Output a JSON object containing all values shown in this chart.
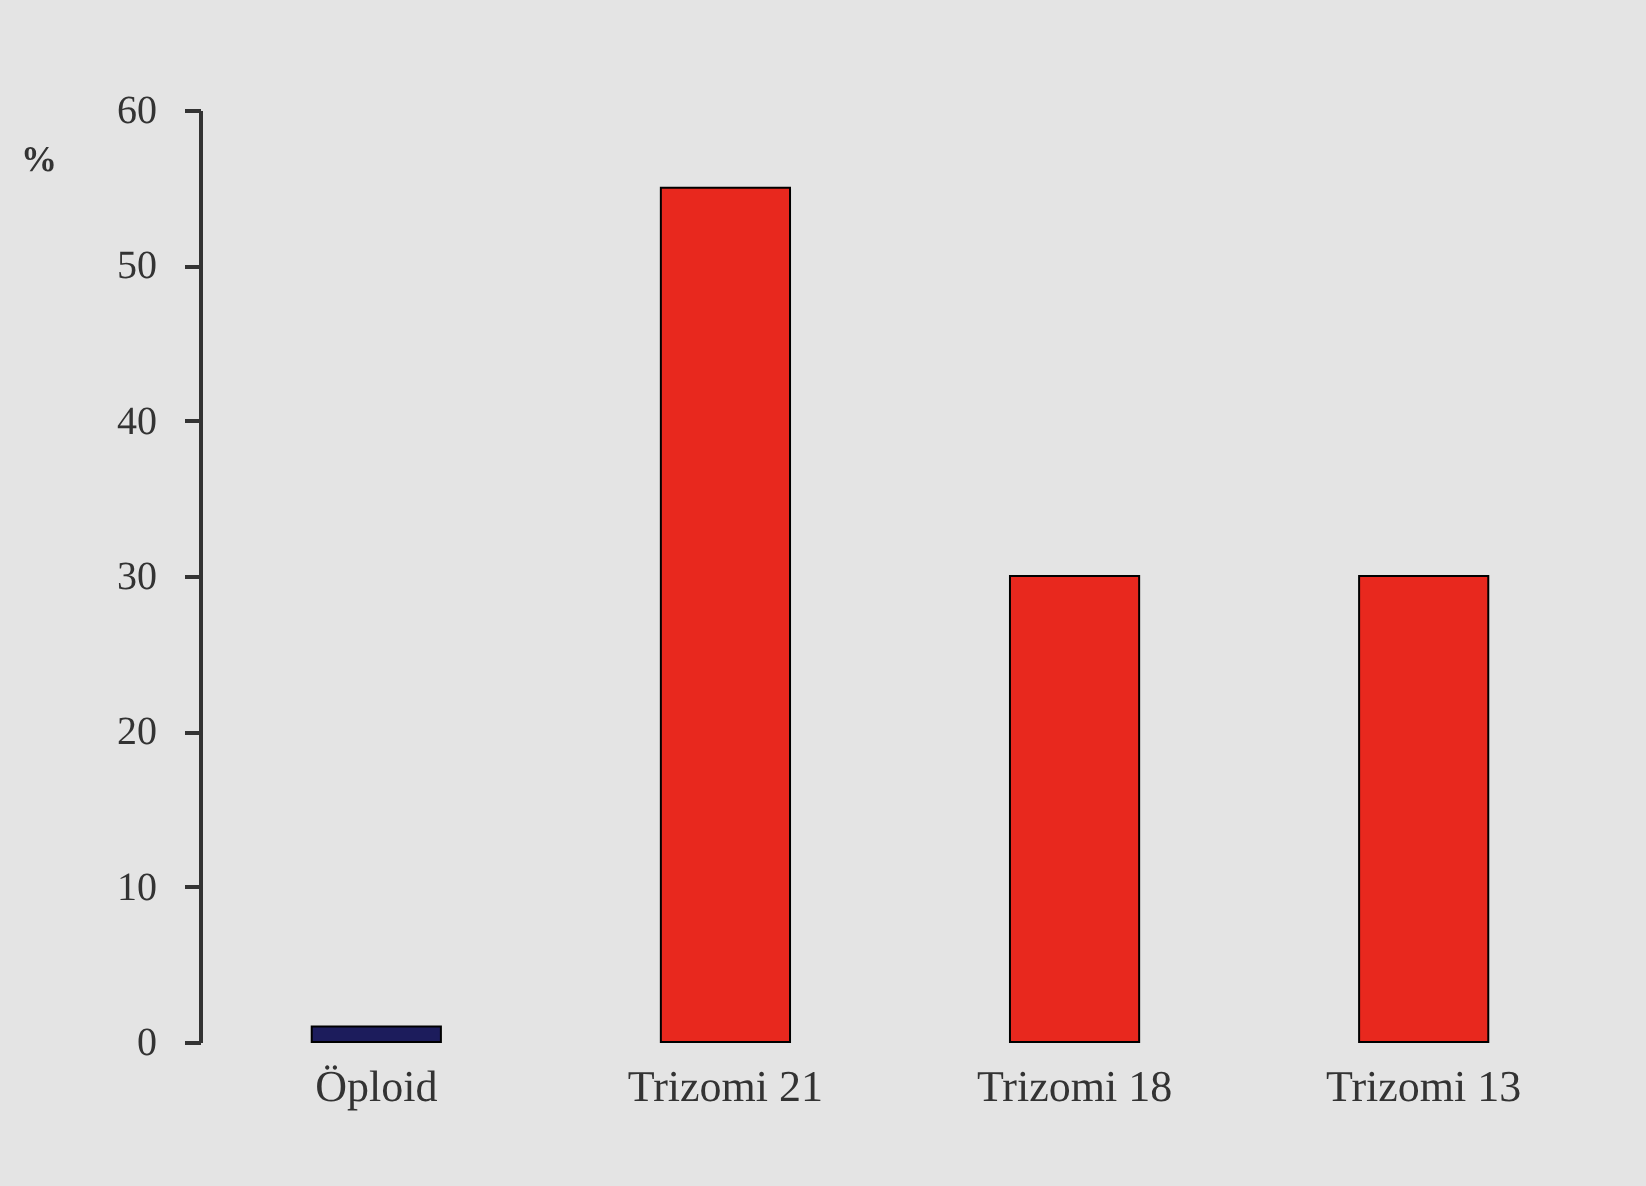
{
  "chart_data": {
    "type": "bar",
    "ylabel": "%",
    "categories": [
      "Öploid",
      "Trizomi 21",
      "Trizomi 18",
      "Trizomi 13"
    ],
    "values": [
      1,
      55,
      30,
      30
    ],
    "colors": [
      "#1c1c5c",
      "#e8281e",
      "#e8281e",
      "#e8281e"
    ],
    "ylim": [
      0,
      60
    ],
    "yticks": [
      0,
      10,
      20,
      30,
      40,
      50,
      60
    ],
    "grid": false
  }
}
